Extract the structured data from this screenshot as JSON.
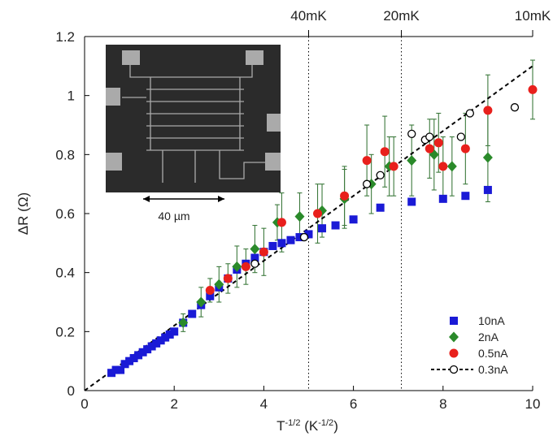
{
  "chart_data": {
    "type": "scatter",
    "xlabel": [
      "T",
      "-1/2",
      " (K",
      "-1/2",
      ")"
    ],
    "ylabel": "ΔR (Ω)",
    "xlim": [
      0,
      10
    ],
    "ylim": [
      0,
      1.2
    ],
    "xticks": [
      0,
      2,
      4,
      6,
      8,
      10
    ],
    "yticks": [
      0,
      0.2,
      0.4,
      0.6,
      0.8,
      1,
      1.2
    ],
    "top_ticks": [
      {
        "value": 5,
        "label": "40mK"
      },
      {
        "value": 7.07,
        "label": "20mK"
      },
      {
        "value": 10,
        "label": "10mK"
      }
    ],
    "vlines": [
      5,
      7.07
    ],
    "legend": "lower right",
    "inset": {
      "scale_label": "40 µm"
    },
    "series": [
      {
        "name": "10nA",
        "color": "#1a1ad6",
        "marker": "square",
        "x": [
          0.6,
          0.7,
          0.8,
          0.9,
          1.0,
          1.1,
          1.2,
          1.3,
          1.4,
          1.5,
          1.6,
          1.7,
          1.8,
          1.9,
          2.0,
          2.2,
          2.4,
          2.6,
          2.8,
          3.0,
          3.2,
          3.4,
          3.6,
          3.8,
          4.0,
          4.2,
          4.4,
          4.6,
          4.8,
          5.0,
          5.3,
          5.6,
          6.0,
          6.6,
          7.3,
          8.0,
          8.5,
          9.0
        ],
        "y": [
          0.06,
          0.07,
          0.07,
          0.09,
          0.1,
          0.11,
          0.12,
          0.13,
          0.14,
          0.15,
          0.16,
          0.17,
          0.18,
          0.19,
          0.2,
          0.23,
          0.26,
          0.29,
          0.32,
          0.35,
          0.38,
          0.41,
          0.43,
          0.45,
          0.47,
          0.49,
          0.5,
          0.51,
          0.52,
          0.53,
          0.55,
          0.56,
          0.58,
          0.62,
          0.64,
          0.65,
          0.66,
          0.68
        ]
      },
      {
        "name": "2nA",
        "color": "#2a8a2a",
        "marker": "diamond",
        "x": [
          2.2,
          2.6,
          3.0,
          3.4,
          3.8,
          4.3,
          4.8,
          5.3,
          5.8,
          6.4,
          6.8,
          7.3,
          7.8,
          8.2,
          9.0
        ],
        "y": [
          0.23,
          0.3,
          0.36,
          0.42,
          0.48,
          0.57,
          0.59,
          0.61,
          0.65,
          0.7,
          0.76,
          0.78,
          0.8,
          0.76,
          0.79
        ],
        "errors": [
          0.03,
          0.05,
          0.06,
          0.07,
          0.08,
          0.06,
          0.08,
          0.09,
          0.1,
          0.1,
          0.1,
          0.12,
          0.12,
          0.1,
          0.15
        ]
      },
      {
        "name": "0.5nA",
        "color": "#e8201c",
        "marker": "circle",
        "x": [
          2.8,
          3.2,
          3.6,
          4.0,
          4.4,
          5.2,
          5.8,
          6.3,
          6.7,
          6.9,
          7.7,
          7.9,
          8.0,
          8.5,
          9.0,
          10.0
        ],
        "y": [
          0.34,
          0.38,
          0.42,
          0.47,
          0.57,
          0.6,
          0.66,
          0.78,
          0.81,
          0.76,
          0.82,
          0.84,
          0.76,
          0.82,
          0.95,
          1.02
        ],
        "errors": [
          0.04,
          0.05,
          0.06,
          0.08,
          0.1,
          0.1,
          0.1,
          0.12,
          0.12,
          0.1,
          0.1,
          0.1,
          0.1,
          0.12,
          0.12,
          0.1
        ]
      },
      {
        "name": "0.3nA",
        "color": "#000000",
        "marker": "open-circle",
        "x": [
          3.8,
          4.9,
          6.3,
          6.6,
          7.3,
          7.6,
          7.7,
          8.4,
          8.6,
          9.6
        ],
        "y": [
          0.43,
          0.52,
          0.7,
          0.73,
          0.87,
          0.85,
          0.86,
          0.86,
          0.94,
          0.96
        ],
        "fit_x": [
          0,
          10
        ],
        "fit_y": [
          0,
          1.1
        ]
      }
    ]
  }
}
